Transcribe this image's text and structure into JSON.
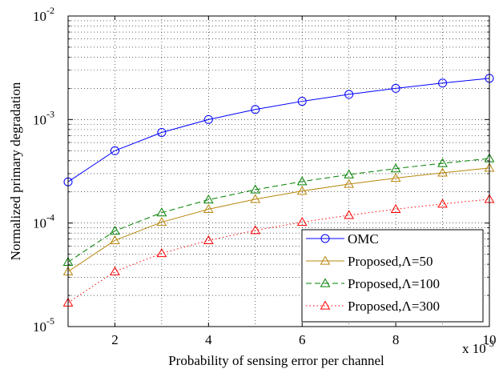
{
  "chart_data": {
    "type": "line",
    "xlabel": "Probability of sensing error per channel",
    "ylabel": "Normalized primary degradation",
    "x_multiplier_label": "x 10",
    "x_multiplier_exp": "-3",
    "xlim": [
      1,
      10
    ],
    "ylim": [
      1e-05,
      0.01
    ],
    "yscale": "log",
    "grid": true,
    "legend_position": "bottom-right",
    "x_ticks": [
      {
        "value": 2,
        "label": "2"
      },
      {
        "value": 4,
        "label": "4"
      },
      {
        "value": 6,
        "label": "6"
      },
      {
        "value": 8,
        "label": "8"
      },
      {
        "value": 10,
        "label": "10"
      }
    ],
    "y_ticks": [
      {
        "value": 1e-05,
        "base": "10",
        "exp": "-5"
      },
      {
        "value": 0.0001,
        "base": "10",
        "exp": "-4"
      },
      {
        "value": 0.001,
        "base": "10",
        "exp": "-3"
      },
      {
        "value": 0.01,
        "base": "10",
        "exp": "-2"
      }
    ],
    "x": [
      1,
      2,
      3,
      4,
      5,
      6,
      7,
      8,
      9,
      10
    ],
    "series": [
      {
        "name": "OMC",
        "color": "#0000ff",
        "marker": "circle",
        "dash": "solid",
        "values": [
          0.00025,
          0.0005,
          0.00075,
          0.001,
          0.00125,
          0.0015,
          0.00175,
          0.002,
          0.00225,
          0.0025
        ]
      },
      {
        "name": "Proposed,Λ=50",
        "color": "#b8860b",
        "marker": "triangle",
        "dash": "solid",
        "values": [
          3.4e-05,
          6.8e-05,
          0.000102,
          0.000136,
          0.00017,
          0.000204,
          0.000238,
          0.000272,
          0.000306,
          0.00034
        ]
      },
      {
        "name": "Proposed,Λ=100",
        "color": "#008000",
        "marker": "triangle",
        "dash": "dashed",
        "values": [
          4.2e-05,
          8.4e-05,
          0.000126,
          0.000168,
          0.00021,
          0.000252,
          0.000294,
          0.000336,
          0.000378,
          0.00042
        ]
      },
      {
        "name": "Proposed,Λ=300",
        "color": "#ff0000",
        "marker": "triangle",
        "dash": "dotted",
        "values": [
          1.7e-05,
          3.4e-05,
          5.1e-05,
          6.8e-05,
          8.5e-05,
          0.000102,
          0.000119,
          0.000136,
          0.000153,
          0.00017
        ]
      }
    ]
  }
}
